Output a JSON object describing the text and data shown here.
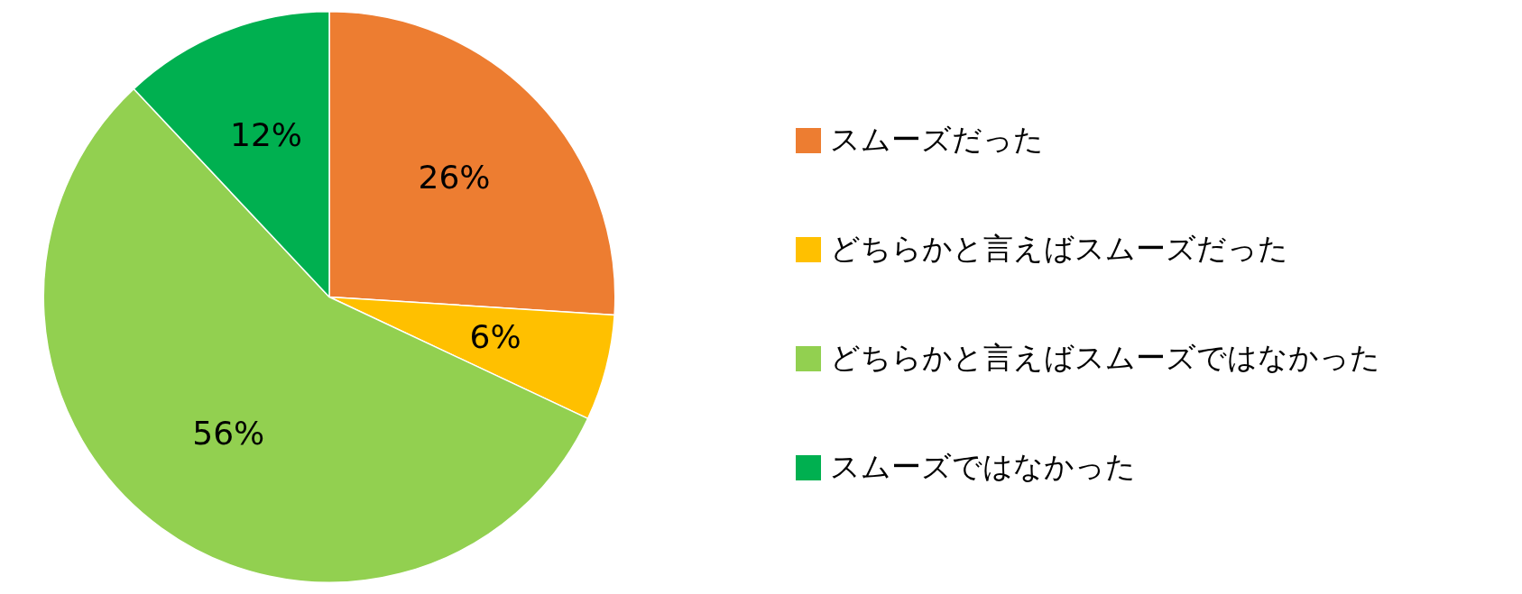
{
  "chart_data": {
    "type": "pie",
    "categories": [
      "スムーズだった",
      "どちらかと言えばスムーズだった",
      "どちらかと言えばスムーズではなかった",
      "スムーズではなかった"
    ],
    "values": [
      26,
      6,
      56,
      12
    ],
    "colors": [
      "#ed7d31",
      "#ffc000",
      "#92d050",
      "#00b050"
    ],
    "value_labels": [
      "26%",
      "6%",
      "56%",
      "12%"
    ],
    "legend": "right"
  }
}
